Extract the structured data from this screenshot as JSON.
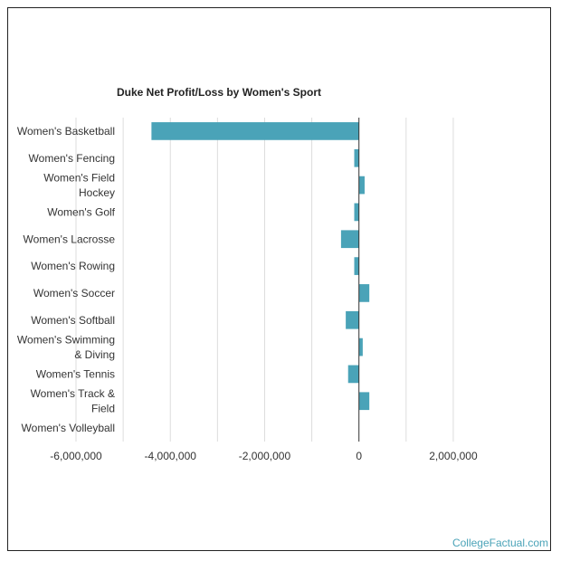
{
  "chart_data": {
    "type": "bar",
    "orientation": "horizontal",
    "title": "Duke Net Profit/Loss by Women's Sport",
    "xlabel": "",
    "ylabel": "",
    "xlim": [
      -6000000,
      2500000
    ],
    "xticks": [
      -6000000,
      -4000000,
      -2000000,
      0,
      2000000
    ],
    "xtick_labels": [
      "-6,000,000",
      "-4,000,000",
      "-2,000,000",
      "0",
      "2,000,000"
    ],
    "grid": true,
    "categories": [
      "Women's Basketball",
      "Women's Fencing",
      "Women's Field Hockey",
      "Women's Golf",
      "Women's Lacrosse",
      "Women's Rowing",
      "Women's Soccer",
      "Women's Softball",
      "Women's Swimming & Diving",
      "Women's Tennis",
      "Women's Track & Field",
      "Women's Volleyball"
    ],
    "values": [
      -4400000,
      -100000,
      120000,
      -100000,
      -380000,
      -100000,
      220000,
      -280000,
      80000,
      -230000,
      220000,
      0
    ],
    "bar_color": "#4aa3b8"
  },
  "footer": {
    "credit": "CollegeFactual.com"
  }
}
